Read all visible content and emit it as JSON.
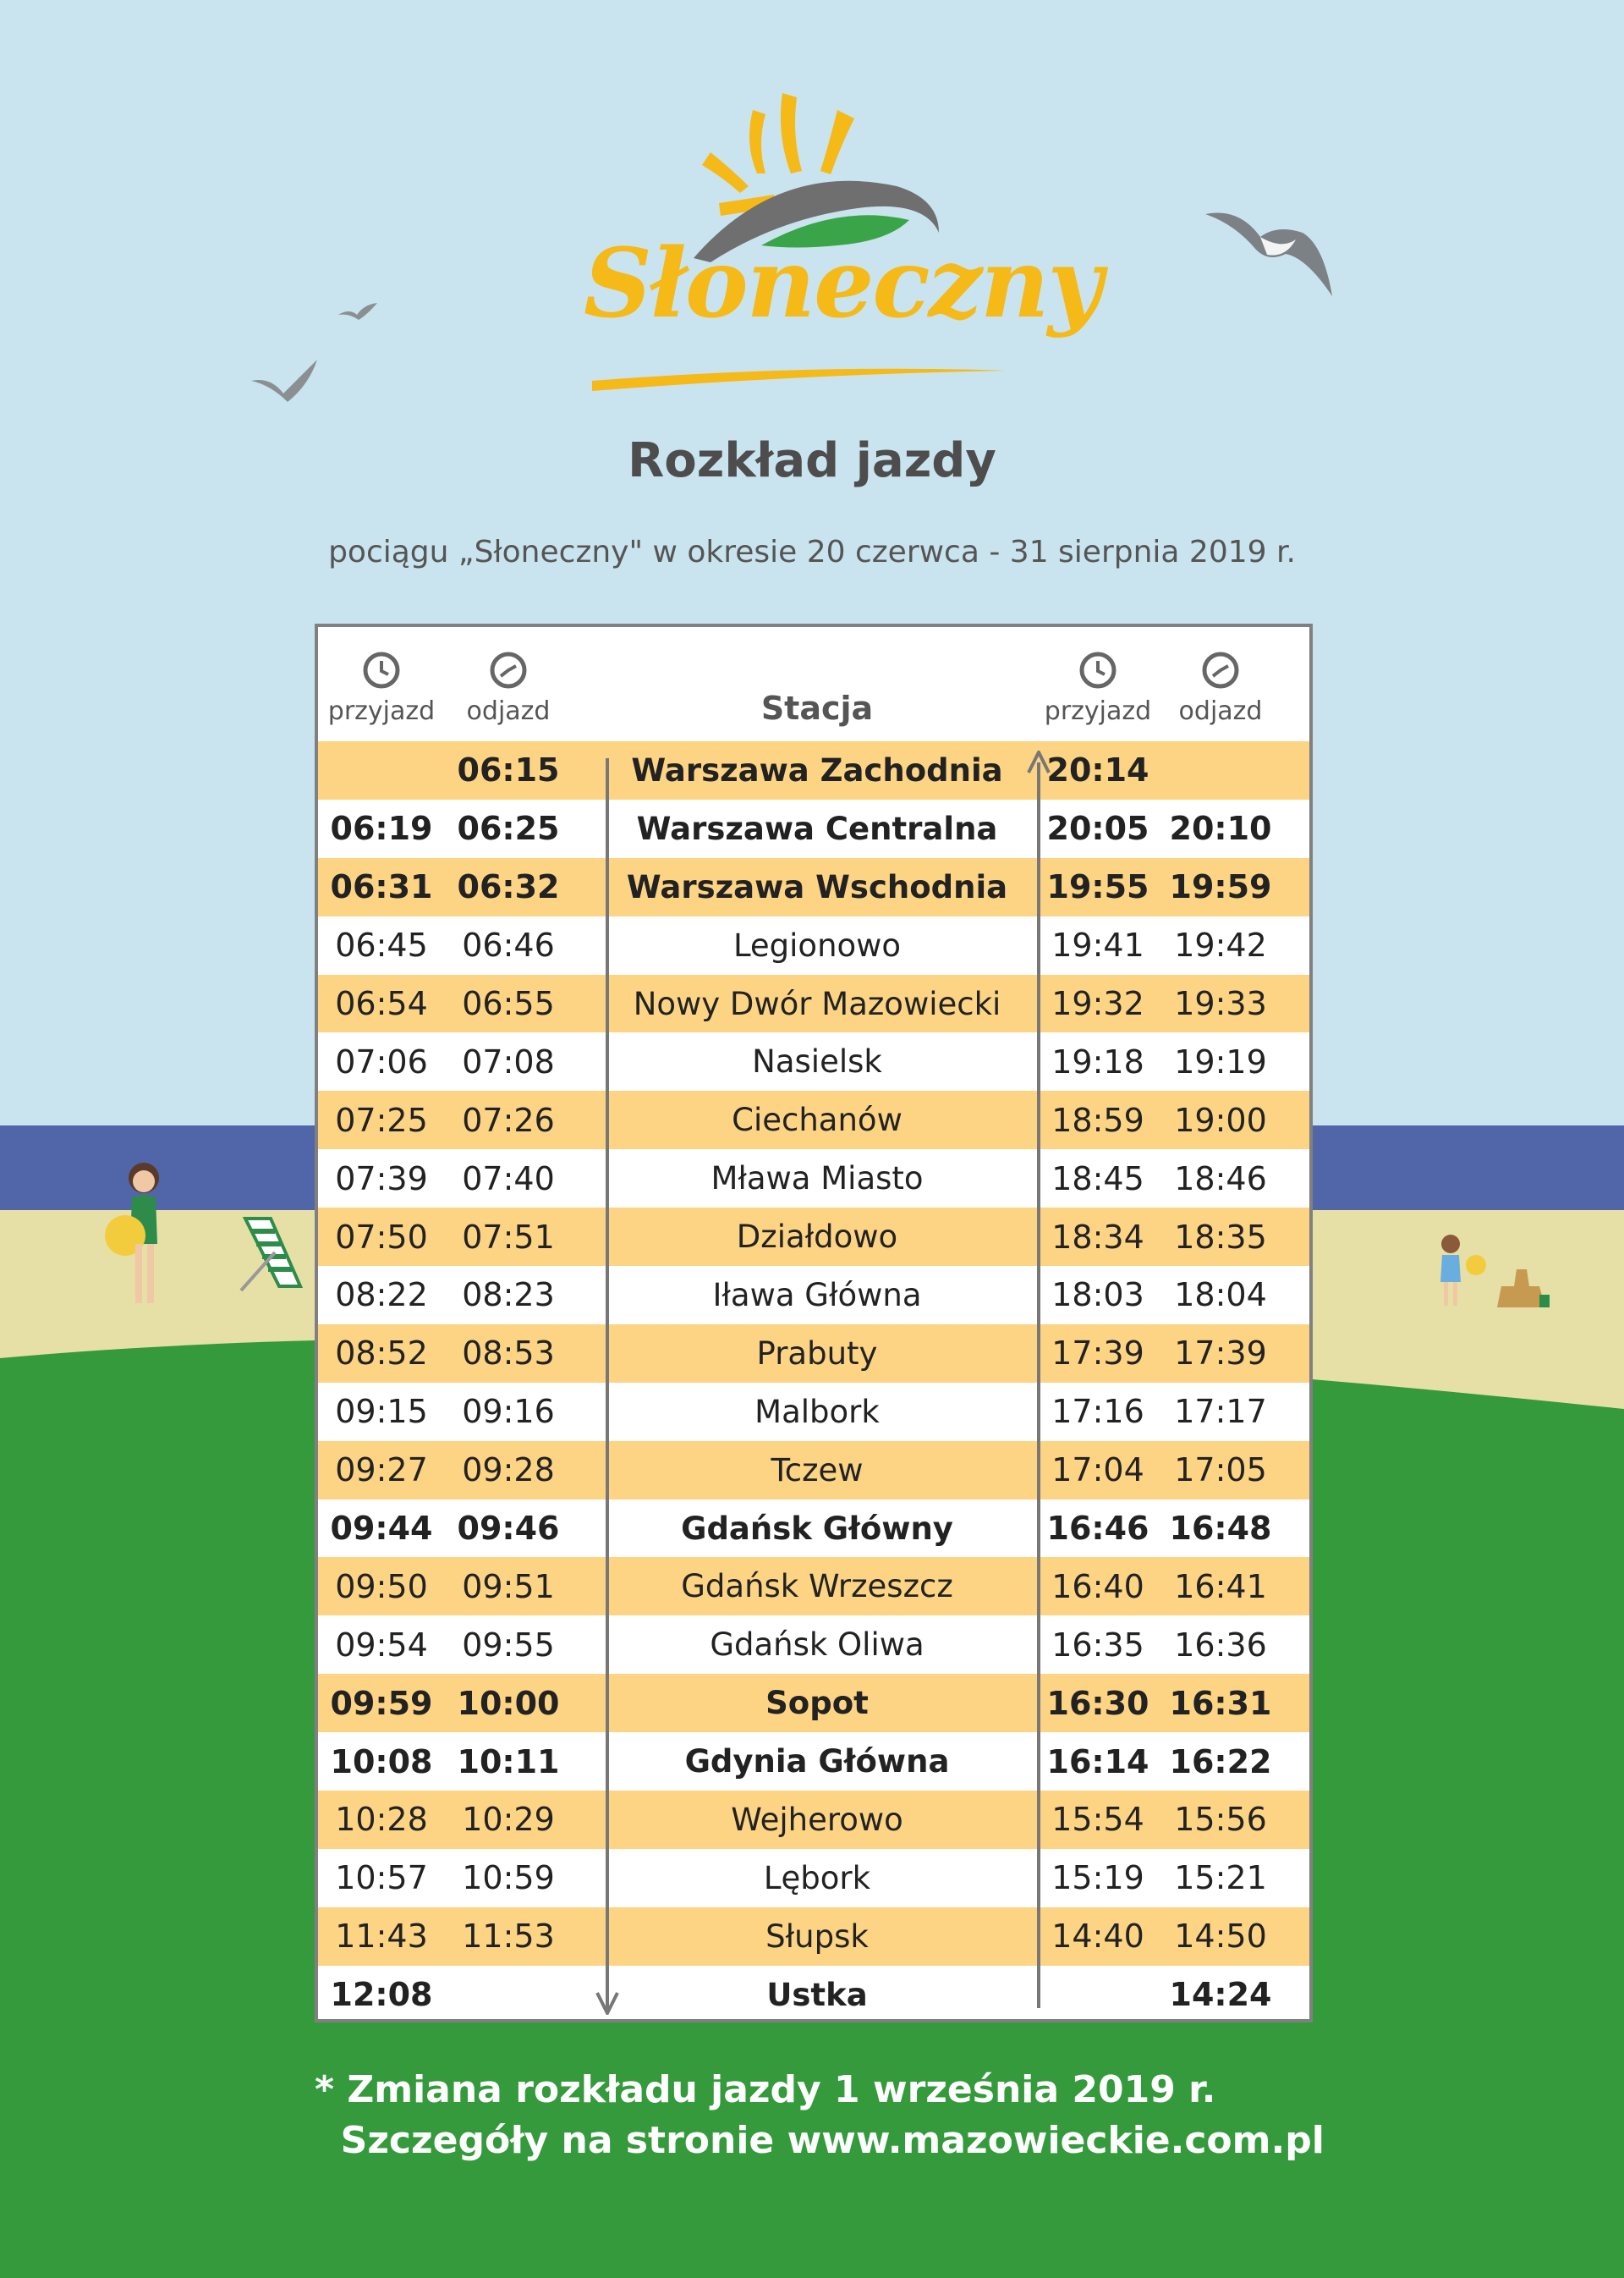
{
  "brand": {
    "name": "Słoneczny"
  },
  "title": "Rozkład jazdy",
  "subtitle": "pociągu „Słoneczny\" w okresie 20 czerwca - 31 sierpnia 2019 r.",
  "header": {
    "arrival_label": "przyjazd",
    "departure_label": "odjazd",
    "station_label": "Stacja"
  },
  "rows": [
    {
      "a1": "",
      "d1": "06:15",
      "station": "Warszawa Zachodnia",
      "a2": "20:14",
      "d2": "",
      "bold": true
    },
    {
      "a1": "06:19",
      "d1": "06:25",
      "station": "Warszawa Centralna",
      "a2": "20:05",
      "d2": "20:10",
      "bold": true
    },
    {
      "a1": "06:31",
      "d1": "06:32",
      "station": "Warszawa Wschodnia",
      "a2": "19:55",
      "d2": "19:59",
      "bold": true
    },
    {
      "a1": "06:45",
      "d1": "06:46",
      "station": "Legionowo",
      "a2": "19:41",
      "d2": "19:42",
      "bold": false
    },
    {
      "a1": "06:54",
      "d1": "06:55",
      "station": "Nowy Dwór Mazowiecki",
      "a2": "19:32",
      "d2": "19:33",
      "bold": false
    },
    {
      "a1": "07:06",
      "d1": "07:08",
      "station": "Nasielsk",
      "a2": "19:18",
      "d2": "19:19",
      "bold": false
    },
    {
      "a1": "07:25",
      "d1": "07:26",
      "station": "Ciechanów",
      "a2": "18:59",
      "d2": "19:00",
      "bold": false
    },
    {
      "a1": "07:39",
      "d1": "07:40",
      "station": "Mława Miasto",
      "a2": "18:45",
      "d2": "18:46",
      "bold": false
    },
    {
      "a1": "07:50",
      "d1": "07:51",
      "station": "Działdowo",
      "a2": "18:34",
      "d2": "18:35",
      "bold": false
    },
    {
      "a1": "08:22",
      "d1": "08:23",
      "station": "Iława Główna",
      "a2": "18:03",
      "d2": "18:04",
      "bold": false
    },
    {
      "a1": "08:52",
      "d1": "08:53",
      "station": "Prabuty",
      "a2": "17:39",
      "d2": "17:39",
      "bold": false
    },
    {
      "a1": "09:15",
      "d1": "09:16",
      "station": "Malbork",
      "a2": "17:16",
      "d2": "17:17",
      "bold": false
    },
    {
      "a1": "09:27",
      "d1": "09:28",
      "station": "Tczew",
      "a2": "17:04",
      "d2": "17:05",
      "bold": false
    },
    {
      "a1": "09:44",
      "d1": "09:46",
      "station": "Gdańsk Główny",
      "a2": "16:46",
      "d2": "16:48",
      "bold": true
    },
    {
      "a1": "09:50",
      "d1": "09:51",
      "station": "Gdańsk Wrzeszcz",
      "a2": "16:40",
      "d2": "16:41",
      "bold": false
    },
    {
      "a1": "09:54",
      "d1": "09:55",
      "station": "Gdańsk Oliwa",
      "a2": "16:35",
      "d2": "16:36",
      "bold": false
    },
    {
      "a1": "09:59",
      "d1": "10:00",
      "station": "Sopot",
      "a2": "16:30",
      "d2": "16:31",
      "bold": true
    },
    {
      "a1": "10:08",
      "d1": "10:11",
      "station": "Gdynia Główna",
      "a2": "16:14",
      "d2": "16:22",
      "bold": true
    },
    {
      "a1": "10:28",
      "d1": "10:29",
      "station": "Wejherowo",
      "a2": "15:54",
      "d2": "15:56",
      "bold": false
    },
    {
      "a1": "10:57",
      "d1": "10:59",
      "station": "Lębork",
      "a2": "15:19",
      "d2": "15:21",
      "bold": false
    },
    {
      "a1": "11:43",
      "d1": "11:53",
      "station": "Słupsk",
      "a2": "14:40",
      "d2": "14:50",
      "bold": false
    },
    {
      "a1": "12:08",
      "d1": "",
      "station": "Ustka",
      "a2": "",
      "d2": "14:24",
      "bold": true
    }
  ],
  "footnote": {
    "line1": "* Zmiana rozkładu jazdy 1 września 2019 r.",
    "line2": "  Szczegóły na stronie www.mazowieckie.com.pl"
  },
  "colors": {
    "sky": "#c9e4ee",
    "sea": "#5166a8",
    "sand": "#e6e0a6",
    "grass": "#349a3c",
    "row_highlight": "#fdd484",
    "logo_yellow": "#f5b918"
  },
  "icons": [
    "clock-icon",
    "arrow-up-icon",
    "arrow-down-icon",
    "sun-icon",
    "seagull-icon"
  ]
}
